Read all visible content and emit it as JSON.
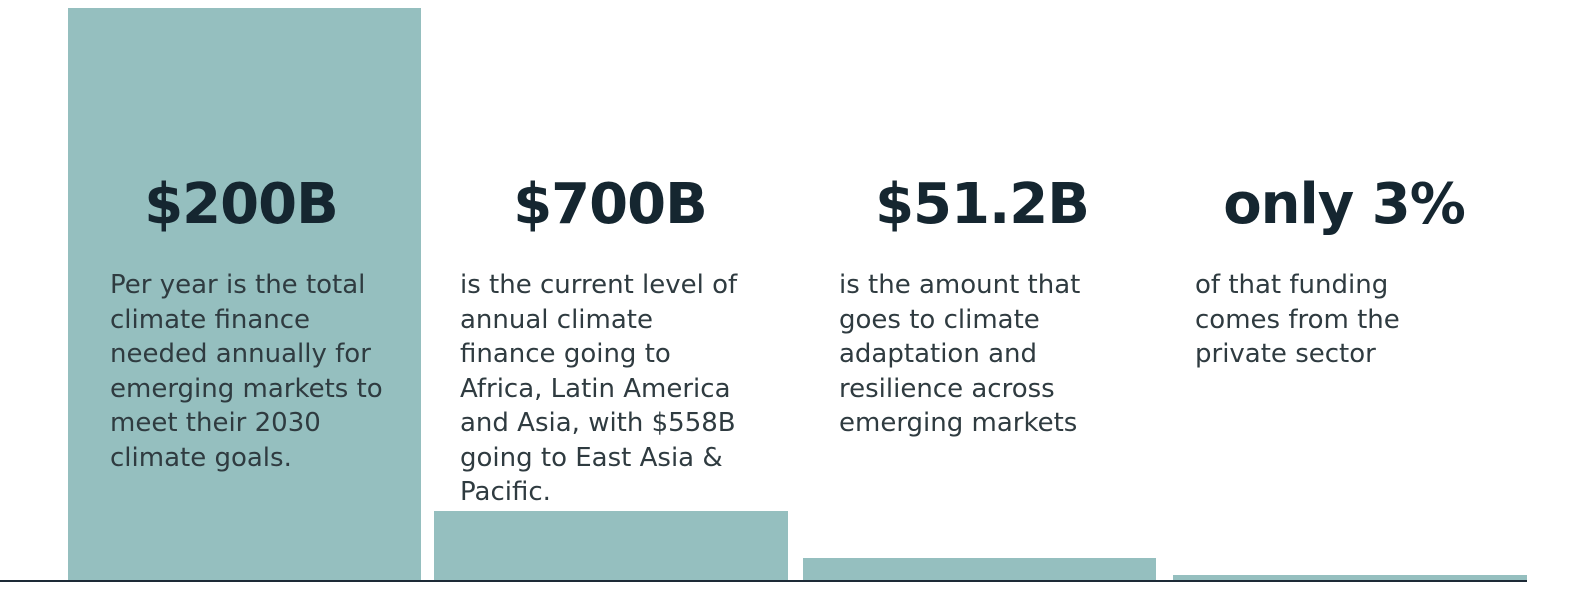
{
  "stats": [
    {
      "headline": "$200B",
      "body": [
        "Per year is the total",
        "climate finance",
        "needed annually for",
        "emerging markets to",
        "meet their 2030",
        "climate goals."
      ]
    },
    {
      "headline": "$700B",
      "body": [
        "is the current level of",
        "annual climate",
        "finance going to",
        "Africa, Latin America",
        "and Asia, with $558B",
        "going to East Asia &",
        "Pacific."
      ]
    },
    {
      "headline": "$51.2B",
      "body": [
        "is the amount that",
        "goes to climate",
        "adaptation and",
        "resilience across",
        "emerging markets"
      ]
    },
    {
      "headline": "only 3%",
      "body": [
        "of that funding",
        "comes from the",
        "private sector"
      ]
    }
  ]
}
